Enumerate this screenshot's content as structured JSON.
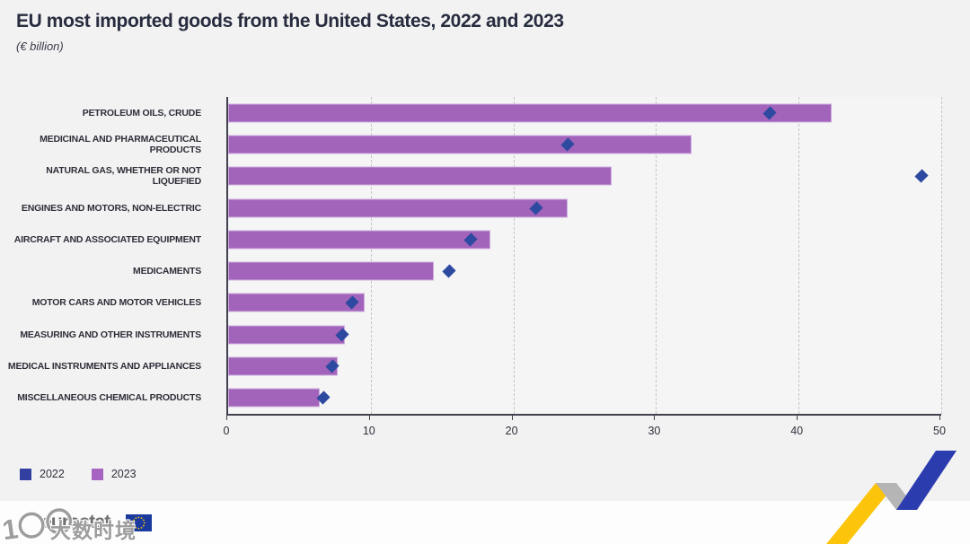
{
  "header": {
    "title": "EU most imported goods from the United States, 2022 and 2023",
    "subtitle": "(€ billion)"
  },
  "chart_data": {
    "type": "bar",
    "orientation": "horizontal",
    "title": "EU most imported goods from the United States, 2022 and 2023",
    "units": "€ billion",
    "categories": [
      "PETROLEUM OILS, CRUDE",
      "MEDICINAL AND PHARMACEUTICAL PRODUCTS",
      "NATURAL GAS, WHETHER OR NOT LIQUEFIED",
      "ENGINES AND MOTORS, NON-ELECTRIC",
      "AIRCRAFT AND ASSOCIATED EQUIPMENT",
      "MEDICAMENTS",
      "MOTOR CARS AND MOTOR VEHICLES",
      "MEASURING AND OTHER INSTRUMENTS",
      "MEDICAL INSTRUMENTS AND APPLIANCES",
      "MISCELLANEOUS CHEMICAL PRODUCTS"
    ],
    "series": [
      {
        "name": "2022",
        "marker": "diamond",
        "color": "#2d4aa0",
        "values": [
          38.0,
          23.8,
          48.6,
          21.6,
          17.0,
          15.5,
          8.7,
          8.0,
          7.3,
          6.7
        ]
      },
      {
        "name": "2023",
        "marker": "bar",
        "color": "#a264ba",
        "values": [
          42.3,
          32.5,
          26.9,
          23.8,
          18.4,
          14.4,
          9.6,
          8.2,
          7.7,
          6.4
        ]
      }
    ],
    "xlim": [
      0,
      50
    ],
    "x_ticks": [
      0,
      10,
      20,
      30,
      40,
      50
    ],
    "grid": "vertical-dashed",
    "legend_position": "bottom-left"
  },
  "legend": {
    "items": [
      {
        "label": "2022",
        "color": "#3340a2"
      },
      {
        "label": "2023",
        "color": "#a763c1"
      }
    ]
  },
  "footer": {
    "logo_text": "eurostat"
  },
  "watermark": {
    "glyph": "1〇〇",
    "characters": "大数时境"
  },
  "colors": {
    "background": "#f2f2f3",
    "plot_background": "#f6f5f6",
    "axis": "#41414f",
    "gridline": "#c4c4c8",
    "title": "#272c3e",
    "bar_2023": "#a264ba",
    "bar_border": "#cfaede",
    "marker_2022": "#2d4aa0",
    "footer_background": "#fdfdfd",
    "decoration_yellow": "#fcc40a",
    "decoration_gray": "#b5b5b5",
    "decoration_blue": "#2b3cae",
    "eu_flag_blue": "#1a3a9e",
    "eu_flag_stars": "#ffcc00"
  }
}
